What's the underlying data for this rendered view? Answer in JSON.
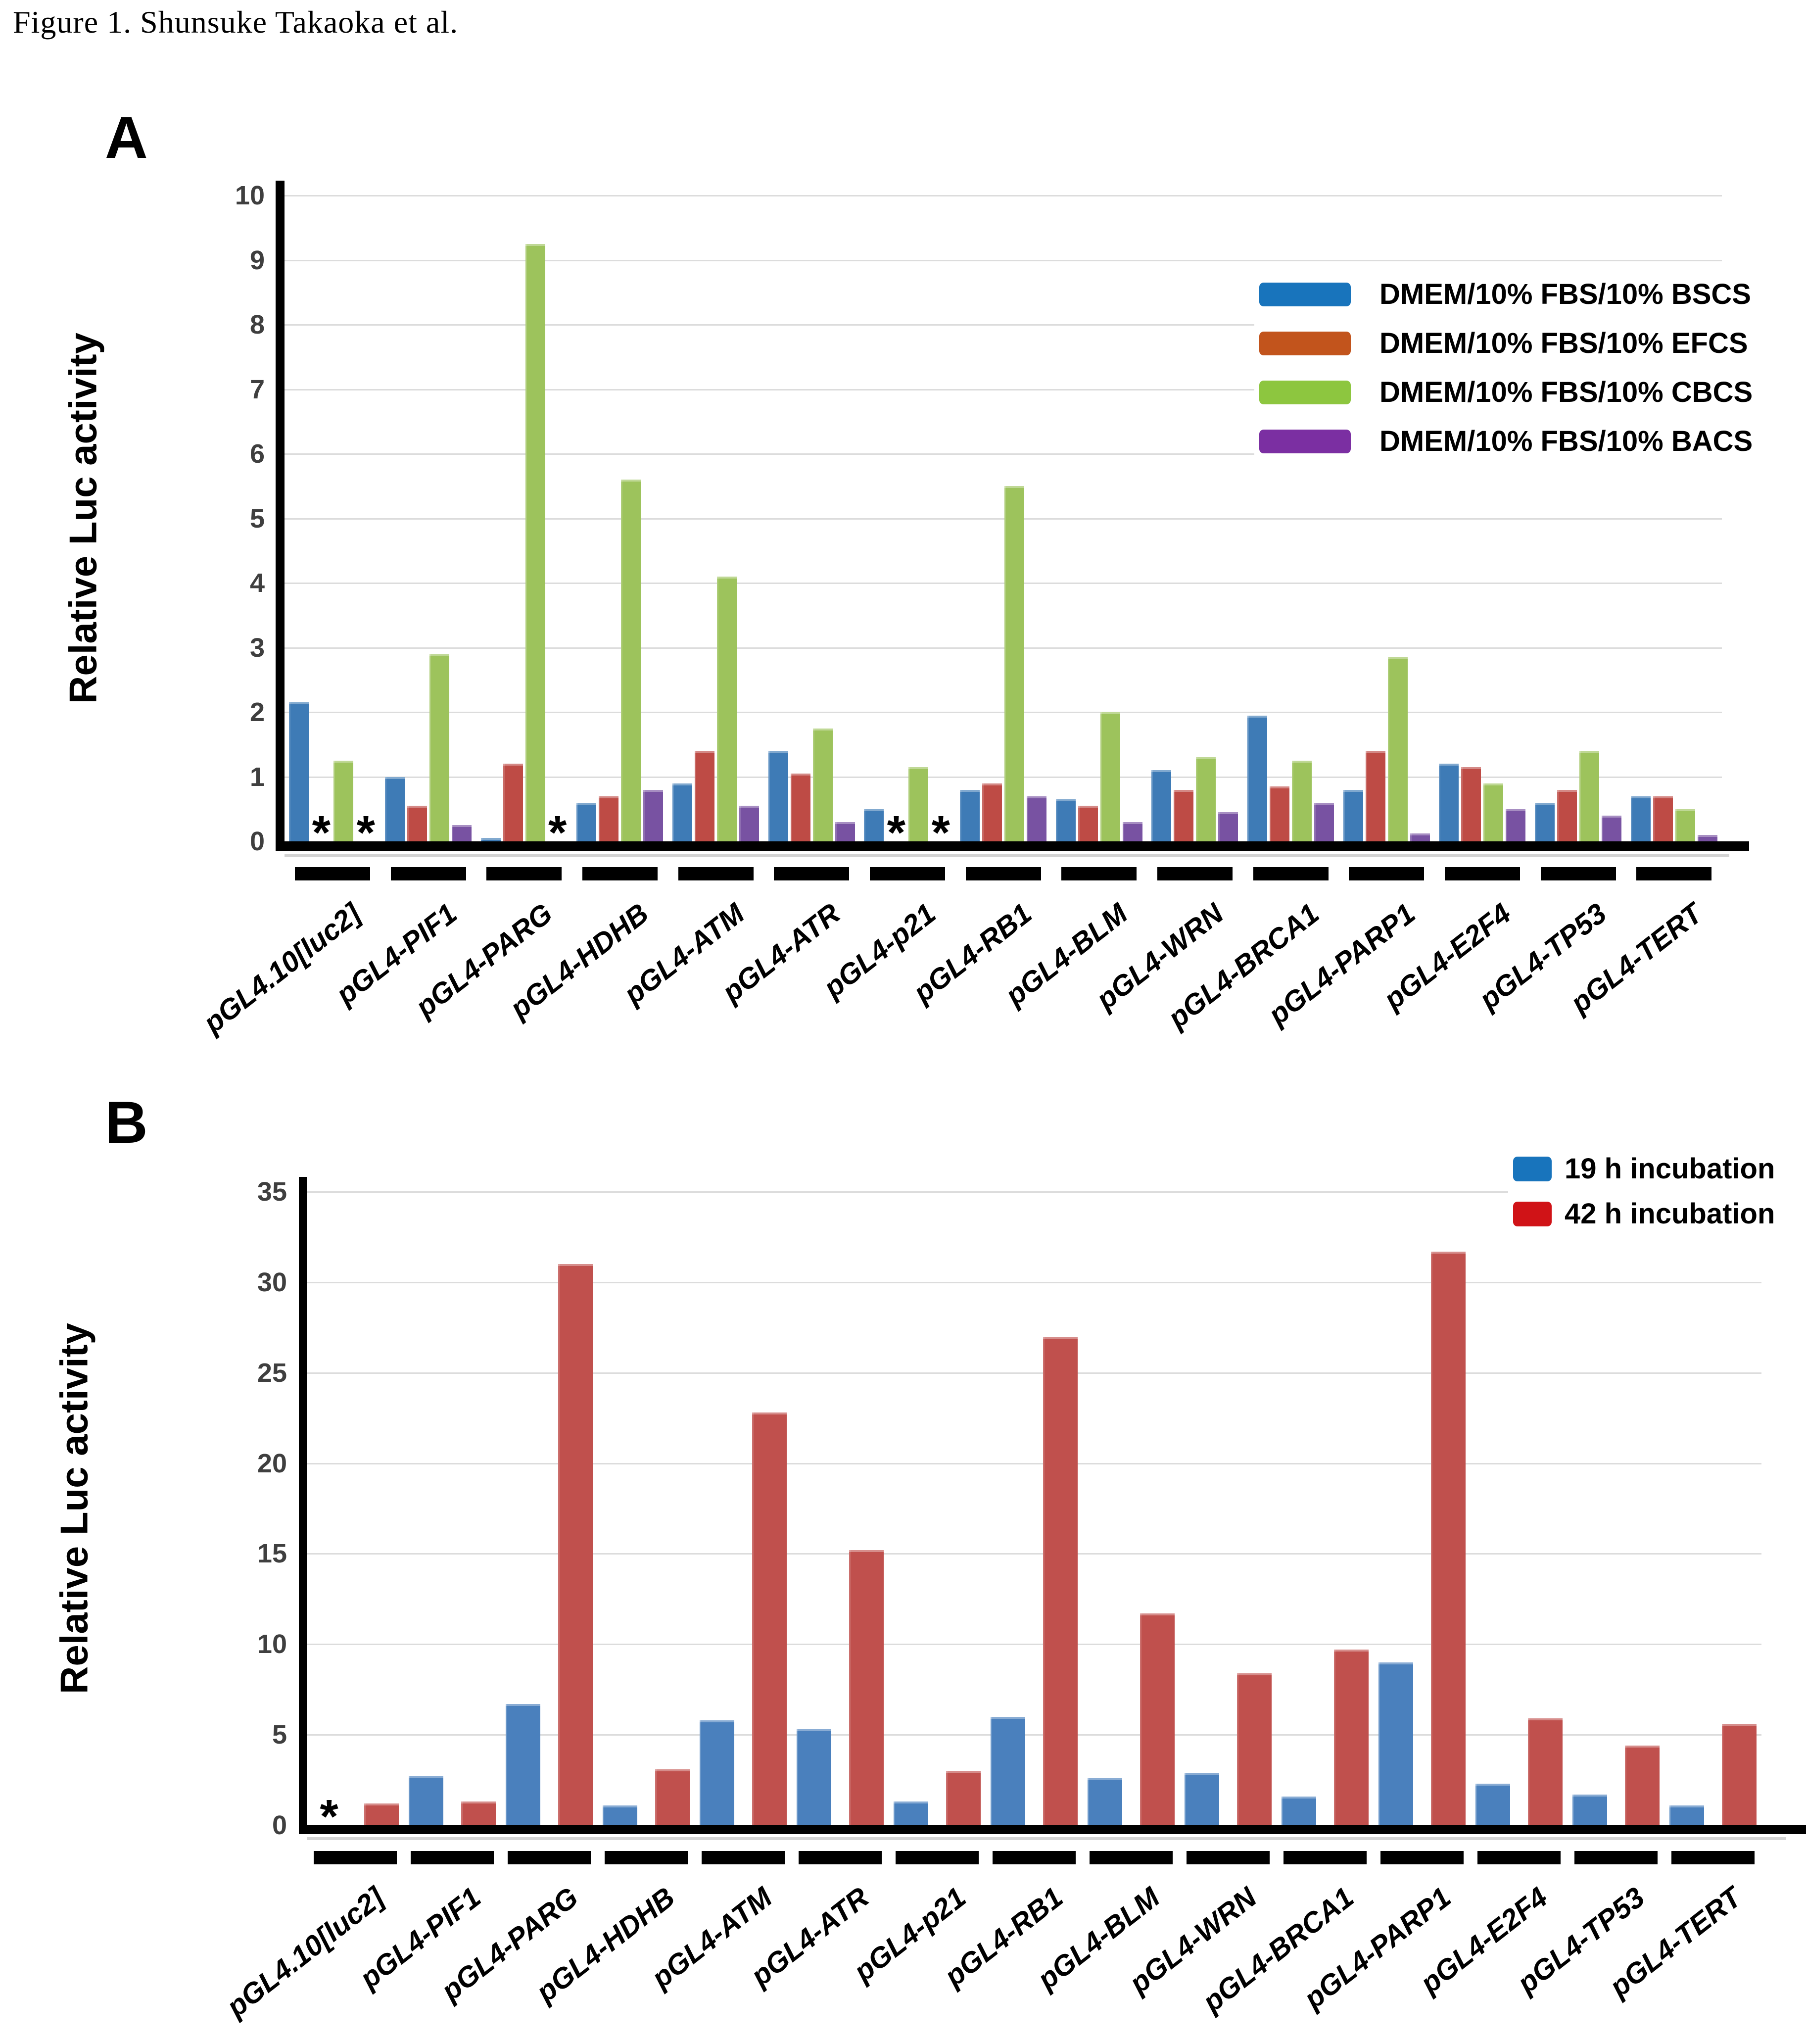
{
  "figure": {
    "title": "Figure 1. Shunsuke Takaoka et al.",
    "missing_marker": "*",
    "grid_color": "#dcdcdc",
    "axis_color": "#000000",
    "tick_color": "#3f3f3f"
  },
  "panels": [
    {
      "label": "A",
      "ylabel": "Relative Luc activity"
    },
    {
      "label": "B",
      "ylabel": "Relative Luc activity"
    }
  ],
  "chart_data": [
    {
      "panel": "A",
      "type": "bar",
      "title": "",
      "xlabel": "",
      "ylabel": "Relative Luc activity",
      "ylim": [
        0,
        10
      ],
      "yticks": [
        0,
        1,
        2,
        3,
        4,
        5,
        6,
        7,
        8,
        9,
        10
      ],
      "grid": true,
      "legend_position": "top-right",
      "missing_marker": "*",
      "categories": [
        "pGL4.10[luc2]",
        "pGL4-PIF1",
        "pGL4-PARG",
        "pGL4-HDHB",
        "pGL4-ATM",
        "pGL4-ATR",
        "pGL4-p21",
        "pGL4-RB1",
        "pGL4-BLM",
        "pGL4-WRN",
        "pGL4-BRCA1",
        "pGL4-PARP1",
        "pGL4-E2F4",
        "pGL4-TP53",
        "pGL4-TERT"
      ],
      "series": [
        {
          "name": "DMEM/10% FBS/10% BSCS",
          "legend_color": "#1874bc",
          "bar_color": "#3e7bb6",
          "values": [
            2.15,
            1.0,
            0.05,
            0.6,
            0.9,
            1.4,
            0.5,
            0.8,
            0.65,
            1.1,
            1.95,
            0.8,
            1.2,
            0.6,
            0.7
          ]
        },
        {
          "name": "DMEM/10% FBS/10% EFCS",
          "legend_color": "#c2541c",
          "bar_color": "#be4b45",
          "values": [
            null,
            0.55,
            1.2,
            0.7,
            1.4,
            1.05,
            null,
            0.9,
            0.55,
            0.8,
            0.85,
            1.4,
            1.15,
            0.8,
            0.7
          ]
        },
        {
          "name": "DMEM/10% FBS/10% CBCS",
          "legend_color": "#8dc63f",
          "bar_color": "#9dc35c",
          "values": [
            1.25,
            2.9,
            9.25,
            5.6,
            4.1,
            1.75,
            1.15,
            5.5,
            2.0,
            1.3,
            1.25,
            2.85,
            0.9,
            1.4,
            0.5
          ]
        },
        {
          "name": "DMEM/10% FBS/10% BACS",
          "legend_color": "#7b2fa2",
          "bar_color": "#7852a2",
          "values": [
            null,
            0.25,
            null,
            0.8,
            0.55,
            0.3,
            null,
            0.7,
            0.3,
            0.45,
            0.6,
            0.12,
            0.5,
            0.4,
            0.1
          ]
        }
      ]
    },
    {
      "panel": "B",
      "type": "bar",
      "title": "",
      "xlabel": "",
      "ylabel": "Relative Luc activity",
      "ylim": [
        0,
        35
      ],
      "yticks": [
        0,
        5,
        10,
        15,
        20,
        25,
        30,
        35
      ],
      "grid": true,
      "legend_position": "top-right",
      "missing_marker": "*",
      "categories": [
        "pGL4.10[luc2]",
        "pGL4-PIF1",
        "pGL4-PARG",
        "pGL4-HDHB",
        "pGL4-ATM",
        "pGL4-ATR",
        "pGL4-p21",
        "pGL4-RB1",
        "pGL4-BLM",
        "pGL4-WRN",
        "pGL4-BRCA1",
        "pGL4-PARP1",
        "pGL4-E2F4",
        "pGL4-TP53",
        "pGL4-TERT"
      ],
      "series": [
        {
          "name": "19 h incubation",
          "legend_color": "#1874bc",
          "bar_color": "#4a80bd",
          "values": [
            null,
            2.7,
            6.7,
            1.1,
            5.8,
            5.3,
            1.3,
            6.0,
            2.6,
            2.9,
            1.6,
            9.0,
            2.3,
            1.7,
            1.1
          ]
        },
        {
          "name": "42 h incubation",
          "legend_color": "#d01317",
          "bar_color": "#c0504d",
          "values": [
            1.2,
            1.3,
            31.0,
            3.1,
            22.8,
            15.2,
            3.0,
            27.0,
            11.7,
            8.4,
            9.7,
            31.7,
            5.9,
            4.4,
            5.6
          ]
        }
      ]
    }
  ]
}
